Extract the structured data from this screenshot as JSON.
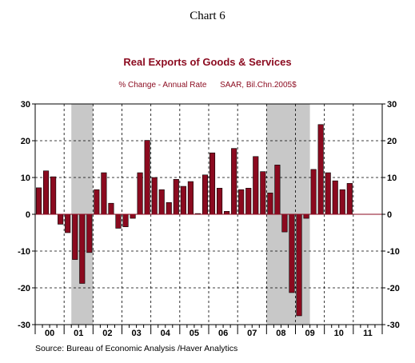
{
  "chart_data": {
    "type": "bar",
    "title": "Real Exports of Goods & Services",
    "chart_number": "Chart 6",
    "subtitle_left": "% Change - Annual Rate",
    "subtitle_right": "SAAR, Bil.Chn.2005$",
    "source": "Source:  Bureau of Economic Analysis /Haver Analytics",
    "x_year_labels": [
      "00",
      "01",
      "02",
      "03",
      "04",
      "05",
      "06",
      "07",
      "08",
      "09",
      "10",
      "11"
    ],
    "y_tick_labels": [
      "30",
      "20",
      "10",
      "0",
      "-10",
      "-20",
      "-30"
    ],
    "ylim": [
      -30,
      30
    ],
    "quarters_per_year": 4,
    "grid": true,
    "colors": {
      "bar": "#8b0a1f",
      "recession": "#c8c8c8",
      "title": "#8b0a1f"
    },
    "recessions": [
      {
        "start_year": "01",
        "start_quarter": 2,
        "end_year": "01",
        "end_quarter": 4
      },
      {
        "start_year": "08",
        "start_quarter": 1,
        "end_year": "09",
        "end_quarter": 2
      }
    ],
    "values": [
      7.2,
      11.8,
      10.2,
      -2.7,
      -5.0,
      -12.3,
      -18.8,
      -10.4,
      6.7,
      11.3,
      3.0,
      -3.8,
      -3.4,
      -1.1,
      11.3,
      20.1,
      10.0,
      6.7,
      3.2,
      9.5,
      7.6,
      8.9,
      0.2,
      10.7,
      16.7,
      7.1,
      0.8,
      17.9,
      6.7,
      7.1,
      15.7,
      11.6,
      5.8,
      13.4,
      -4.8,
      -21.3,
      -27.6,
      -1.1,
      12.2,
      24.4,
      11.3,
      9.1,
      6.7,
      8.4
    ]
  }
}
